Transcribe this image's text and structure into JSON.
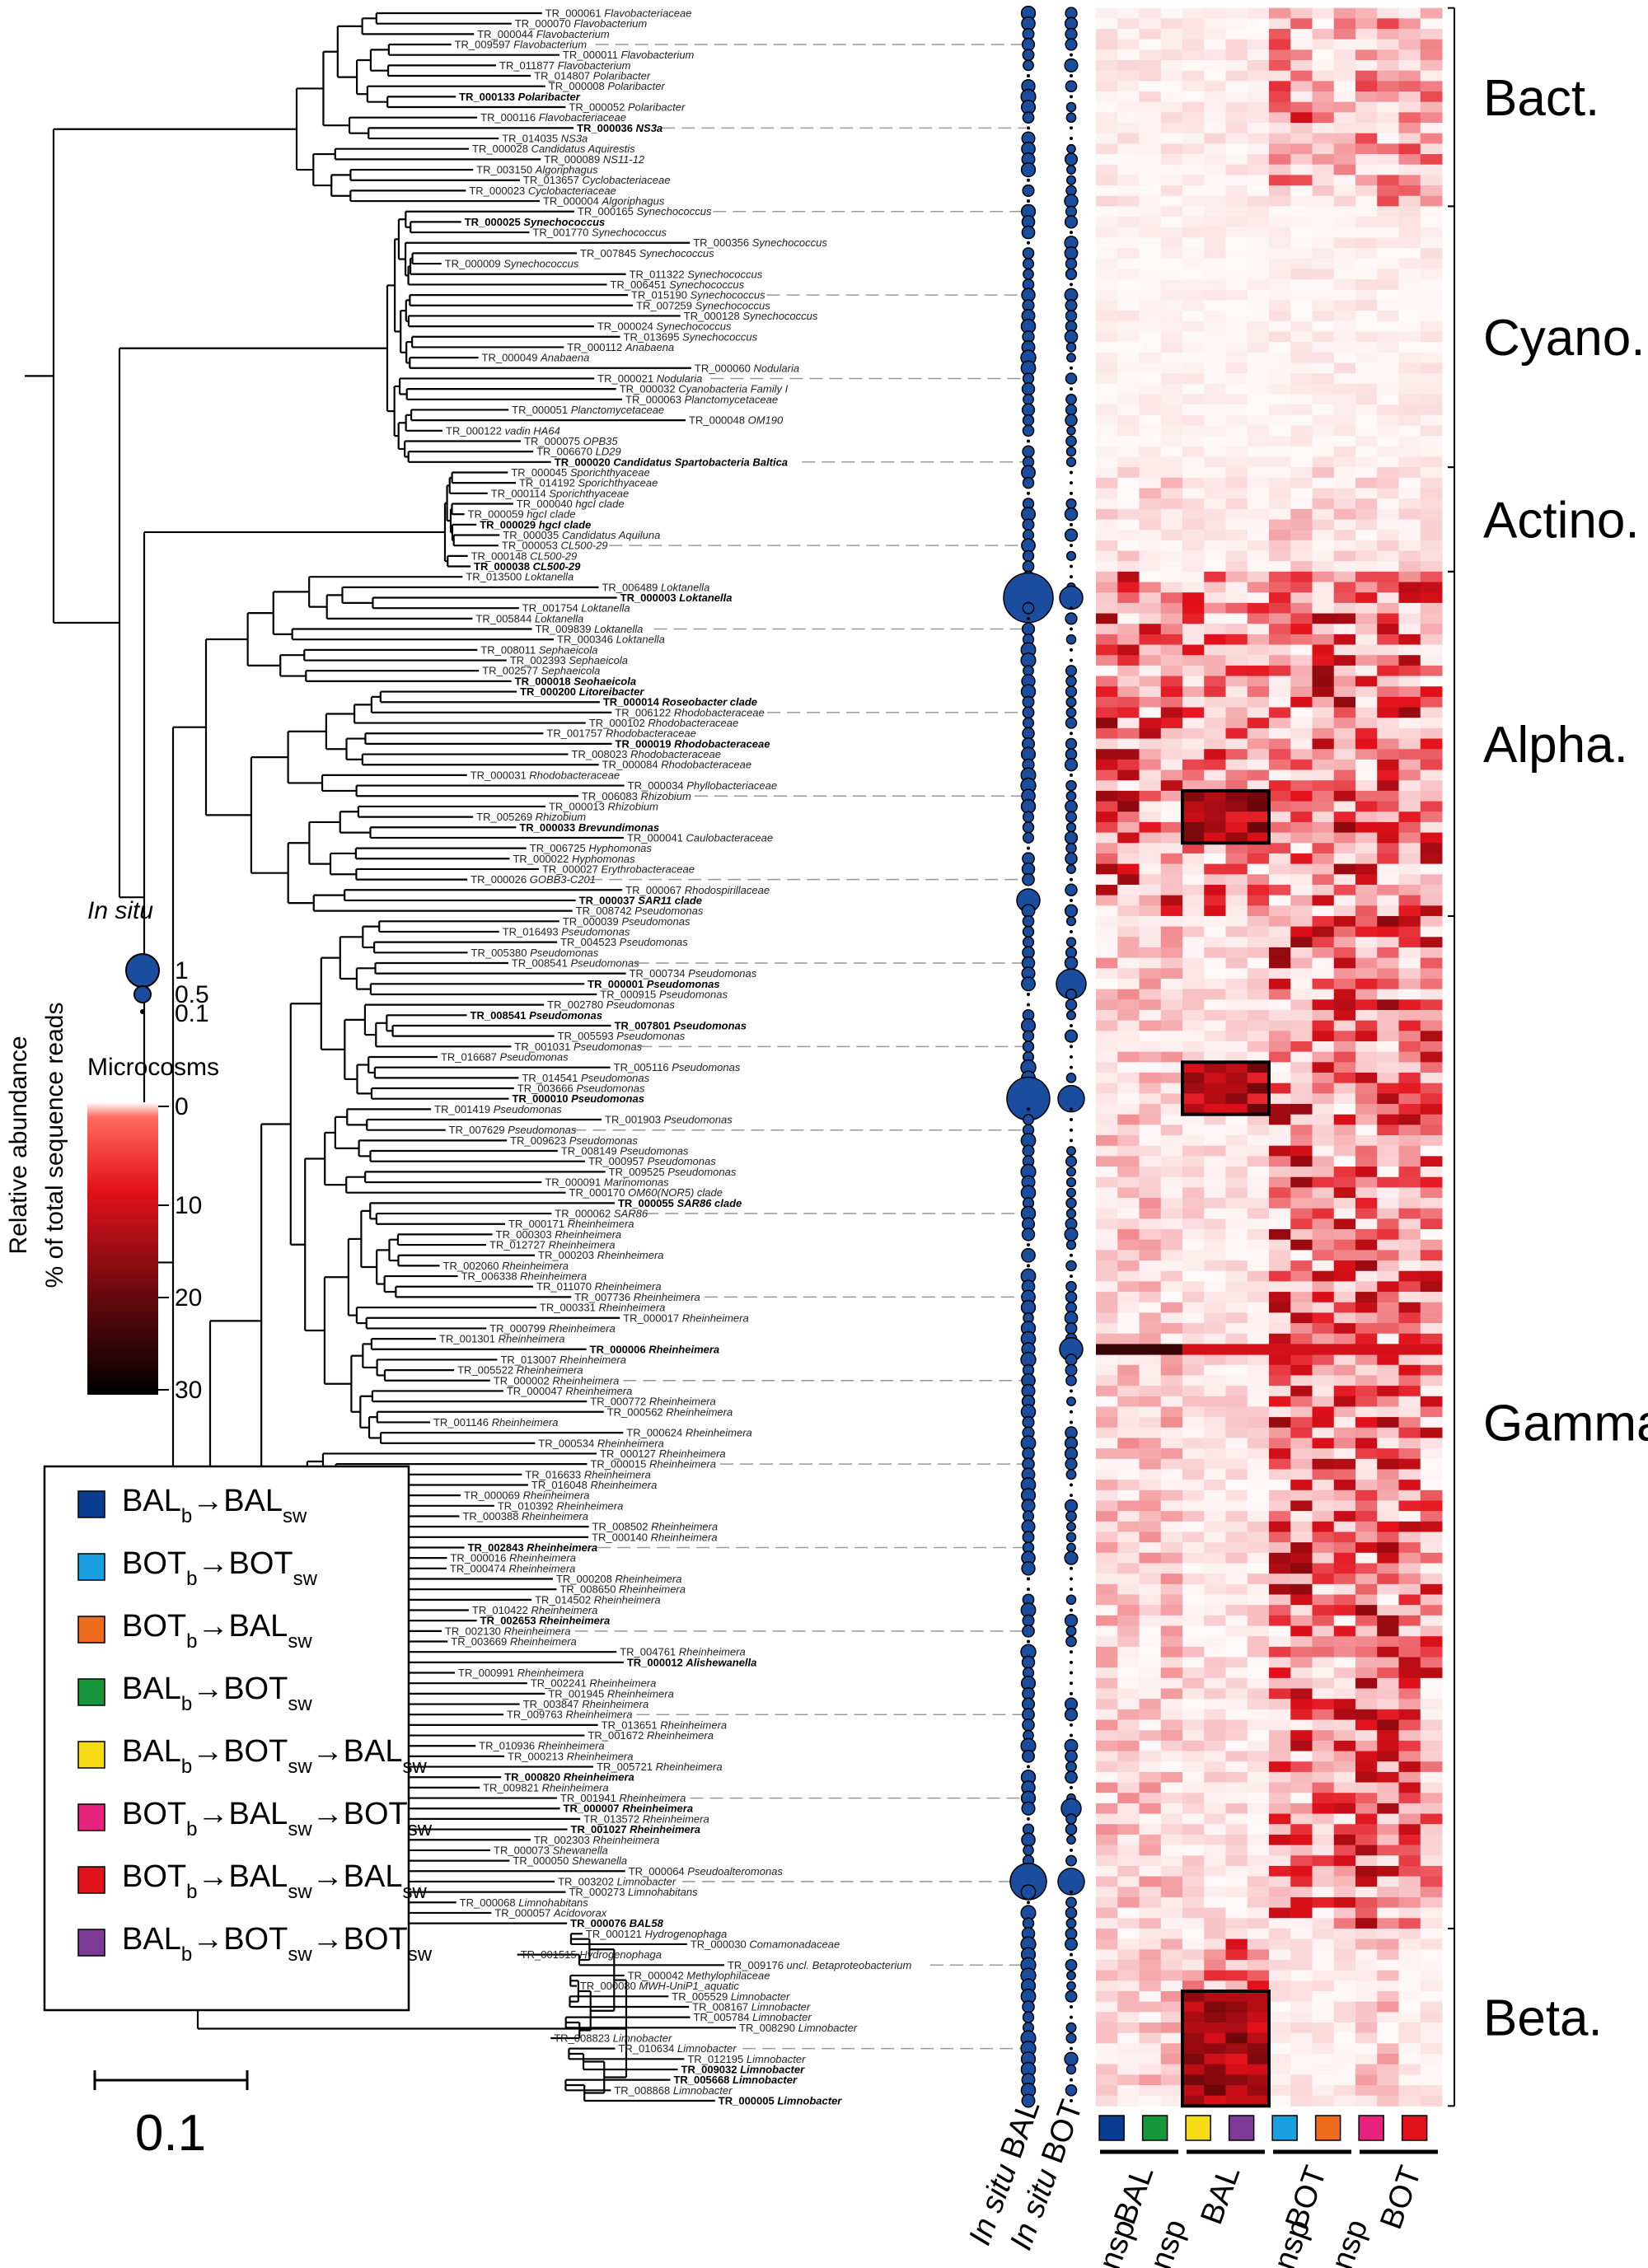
{
  "figure": {
    "groups": [
      {
        "label": "Bact."
      },
      {
        "label": "Cyano."
      },
      {
        "label": "Actino."
      },
      {
        "label": "Alpha."
      },
      {
        "label": "Gamma."
      },
      {
        "label": "Beta."
      }
    ],
    "legend": {
      "insitu_title": "In situ",
      "insitu_ticks": [
        "1",
        "0.5",
        "0.1"
      ],
      "micro_title": "Microcosms",
      "micro_ticks": [
        "0",
        "10",
        "20",
        "30"
      ],
      "axis_line1": "Relative abundance",
      "axis_line2": "% of total sequence reads"
    },
    "treatments": [
      {
        "from": "BAL",
        "mid": "BAL",
        "end": "",
        "color": "#0a3d91"
      },
      {
        "from": "BOT",
        "mid": "BOT",
        "end": "",
        "color": "#1aa0e0"
      },
      {
        "from": "BOT",
        "mid": "BAL",
        "end": "",
        "color": "#ee6a1c"
      },
      {
        "from": "BAL",
        "mid": "BOT",
        "end": "",
        "color": "#17963b"
      },
      {
        "from": "BAL",
        "mid": "BOT",
        "end": "BAL",
        "color": "#f6dc14"
      },
      {
        "from": "BOT",
        "mid": "BAL",
        "end": "BOT",
        "color": "#e8237e"
      },
      {
        "from": "BOT",
        "mid": "BAL",
        "end": "BAL",
        "color": "#e1121b"
      },
      {
        "from": "BAL",
        "mid": "BOT",
        "end": "BOT",
        "color": "#7d3a97"
      }
    ],
    "treatment_sub_b": "b",
    "treatment_sub_sw": "sw",
    "scale_label": "0.1",
    "bottom_labels": {
      "insitu_bal": "In situ BAL",
      "insitu_bot": "In situ BOT",
      "bal": "BAL",
      "bot": "BOT",
      "transp": "transp",
      "retransp": "re-transp"
    },
    "colors": {
      "bubble": "#1a4d9e",
      "heat_low": "#fff8f8",
      "heat_high": "#e3111b"
    }
  },
  "taxa": [
    {
      "id": "TR_000061",
      "name": "Flavobacteriaceae",
      "bold": false
    },
    {
      "id": "TR_000070",
      "name": "Flavobacterium",
      "bold": false
    },
    {
      "id": "TR_000044",
      "name": "Flavobacterium",
      "bold": false
    },
    {
      "id": "TR_009597",
      "name": "Flavobacterium",
      "bold": false
    },
    {
      "id": "TR_000011",
      "name": "Flavobacterium",
      "bold": false
    },
    {
      "id": "TR_011877",
      "name": "Flavobacterium",
      "bold": false
    },
    {
      "id": "TR_014807",
      "name": "Polaribacter",
      "bold": false
    },
    {
      "id": "TR_000008",
      "name": "Polaribacter",
      "bold": false
    },
    {
      "id": "TR_000133",
      "name": "Polaribacter",
      "bold": true
    },
    {
      "id": "TR_000052",
      "name": "Polaribacter",
      "bold": false
    },
    {
      "id": "TR_000116",
      "name": "Flavobacteriaceae",
      "bold": false
    },
    {
      "id": "TR_000036",
      "name": "NS3a",
      "bold": true
    },
    {
      "id": "TR_014035",
      "name": "NS3a",
      "bold": false
    },
    {
      "id": "TR_000028",
      "name": "Candidatus Aquirestis",
      "bold": false
    },
    {
      "id": "TR_000089",
      "name": "NS11-12",
      "bold": false
    },
    {
      "id": "TR_003150",
      "name": "Algoriphagus",
      "bold": false
    },
    {
      "id": "TR_013657",
      "name": "Cyclobacteriaceae",
      "bold": false
    },
    {
      "id": "TR_000023",
      "name": "Cyclobacteriaceae",
      "bold": false
    },
    {
      "id": "TR_000004",
      "name": "Algoriphagus",
      "bold": false
    },
    {
      "id": "TR_000165",
      "name": "Synechococcus",
      "bold": false
    },
    {
      "id": "TR_000025",
      "name": "Synechococcus",
      "bold": true
    },
    {
      "id": "TR_001770",
      "name": "Synechococcus",
      "bold": false
    },
    {
      "id": "TR_000356",
      "name": "Synechococcus",
      "bold": false
    },
    {
      "id": "TR_007845",
      "name": "Synechococcus",
      "bold": false
    },
    {
      "id": "TR_000009",
      "name": "Synechococcus",
      "bold": false
    },
    {
      "id": "TR_011322",
      "name": "Synechococcus",
      "bold": false
    },
    {
      "id": "TR_006451",
      "name": "Synechococcus",
      "bold": false
    },
    {
      "id": "TR_015190",
      "name": "Synechococcus",
      "bold": false
    },
    {
      "id": "TR_007259",
      "name": "Synechococcus",
      "bold": false
    },
    {
      "id": "TR_000128",
      "name": "Synechococcus",
      "bold": false
    },
    {
      "id": "TR_000024",
      "name": "Synechococcus",
      "bold": false
    },
    {
      "id": "TR_013695",
      "name": "Synechococcus",
      "bold": false
    },
    {
      "id": "TR_000112",
      "name": "Anabaena",
      "bold": false
    },
    {
      "id": "TR_000049",
      "name": "Anabaena",
      "bold": false
    },
    {
      "id": "TR_000060",
      "name": "Nodularia",
      "bold": false
    },
    {
      "id": "TR_000021",
      "name": "Nodularia",
      "bold": false
    },
    {
      "id": "TR_000032",
      "name": "Cyanobacteria Family I",
      "bold": false
    },
    {
      "id": "TR_000063",
      "name": "Planctomycetaceae",
      "bold": false
    },
    {
      "id": "TR_000051",
      "name": "Planctomycetaceae",
      "bold": false
    },
    {
      "id": "TR_000048",
      "name": "OM190",
      "bold": false
    },
    {
      "id": "TR_000122",
      "name": "vadin HA64",
      "bold": false
    },
    {
      "id": "TR_000075",
      "name": "OPB35",
      "bold": false
    },
    {
      "id": "TR_006670",
      "name": "LD29",
      "bold": false
    },
    {
      "id": "TR_000020",
      "name": "Candidatus Spartobacteria Baltica",
      "bold": true
    },
    {
      "id": "TR_000045",
      "name": "Sporichthyaceae",
      "bold": false
    },
    {
      "id": "TR_014192",
      "name": "Sporichthyaceae",
      "bold": false
    },
    {
      "id": "TR_000114",
      "name": "Sporichthyaceae",
      "bold": false
    },
    {
      "id": "TR_000040",
      "name": "hgcI clade",
      "bold": false
    },
    {
      "id": "TR_000059",
      "name": "hgcI clade",
      "bold": false
    },
    {
      "id": "TR_000029",
      "name": "hgcI clade",
      "bold": true
    },
    {
      "id": "TR_000035",
      "name": "Candidatus Aquiluna",
      "bold": false
    },
    {
      "id": "TR_000053",
      "name": "CL500-29",
      "bold": false
    },
    {
      "id": "TR_000148",
      "name": "CL500-29",
      "bold": false
    },
    {
      "id": "TR_000038",
      "name": "CL500-29",
      "bold": true
    },
    {
      "id": "TR_013500",
      "name": "Loktanella",
      "bold": false
    },
    {
      "id": "TR_006489",
      "name": "Loktanella",
      "bold": false
    },
    {
      "id": "TR_000003",
      "name": "Loktanella",
      "bold": true
    },
    {
      "id": "TR_001754",
      "name": "Loktanella",
      "bold": false
    },
    {
      "id": "TR_005844",
      "name": "Loktanella",
      "bold": false
    },
    {
      "id": "TR_009839",
      "name": "Loktanella",
      "bold": false
    },
    {
      "id": "TR_000346",
      "name": "Loktanella",
      "bold": false
    },
    {
      "id": "TR_008011",
      "name": "Sephaeicola",
      "bold": false
    },
    {
      "id": "TR_002393",
      "name": "Sephaeicola",
      "bold": false
    },
    {
      "id": "TR_002577",
      "name": "Sephaeicola",
      "bold": false
    },
    {
      "id": "TR_000018",
      "name": "Seohaeicola",
      "bold": true
    },
    {
      "id": "TR_000200",
      "name": "Litoreibacter",
      "bold": true
    },
    {
      "id": "TR_000014",
      "name": "Roseobacter clade",
      "bold": true
    },
    {
      "id": "TR_006122",
      "name": "Rhodobacteraceae",
      "bold": false
    },
    {
      "id": "TR_000102",
      "name": "Rhodobacteraceae",
      "bold": false
    },
    {
      "id": "TR_001757",
      "name": "Rhodobacteraceae",
      "bold": false
    },
    {
      "id": "TR_000019",
      "name": "Rhodobacteraceae",
      "bold": true
    },
    {
      "id": "TR_008023",
      "name": "Rhodobacteraceae",
      "bold": false
    },
    {
      "id": "TR_000084",
      "name": "Rhodobacteraceae",
      "bold": false
    },
    {
      "id": "TR_000031",
      "name": "Rhodobacteraceae",
      "bold": false
    },
    {
      "id": "TR_000034",
      "name": "Phyllobacteriaceae",
      "bold": false
    },
    {
      "id": "TR_006083",
      "name": "Rhizobium",
      "bold": false
    },
    {
      "id": "TR_000013",
      "name": "Rhizobium",
      "bold": false
    },
    {
      "id": "TR_005269",
      "name": "Rhizobium",
      "bold": false
    },
    {
      "id": "TR_000033",
      "name": "Brevundimonas",
      "bold": true
    },
    {
      "id": "TR_000041",
      "name": "Caulobacteraceae",
      "bold": false
    },
    {
      "id": "TR_006725",
      "name": "Hyphomonas",
      "bold": false
    },
    {
      "id": "TR_000022",
      "name": "Hyphomonas",
      "bold": false
    },
    {
      "id": "TR_000027",
      "name": "Erythrobacteraceae",
      "bold": false
    },
    {
      "id": "TR_000026",
      "name": "GOBB3-C201",
      "bold": false
    },
    {
      "id": "TR_000067",
      "name": "Rhodospirillaceae",
      "bold": false
    },
    {
      "id": "TR_000037",
      "name": "SAR11 clade",
      "bold": true
    },
    {
      "id": "TR_008742",
      "name": "Pseudomonas",
      "bold": false
    },
    {
      "id": "TR_000039",
      "name": "Pseudomonas",
      "bold": false
    },
    {
      "id": "TR_016493",
      "name": "Pseudomonas",
      "bold": false
    },
    {
      "id": "TR_004523",
      "name": "Pseudomonas",
      "bold": false
    },
    {
      "id": "TR_005380",
      "name": "Pseudomonas",
      "bold": false
    },
    {
      "id": "TR_008541",
      "name": "Pseudomonas",
      "bold": false
    },
    {
      "id": "TR_000734",
      "name": "Pseudomonas",
      "bold": false
    },
    {
      "id": "TR_000001",
      "name": "Pseudomonas",
      "bold": true
    },
    {
      "id": "TR_000915",
      "name": "Pseudomonas",
      "bold": false
    },
    {
      "id": "TR_002780",
      "name": "Pseudomonas",
      "bold": false
    },
    {
      "id": "TR_008541",
      "name": "Pseudomonas",
      "bold": true
    },
    {
      "id": "TR_007801",
      "name": "Pseudomonas",
      "bold": true
    },
    {
      "id": "TR_005593",
      "name": "Pseudomonas",
      "bold": false
    },
    {
      "id": "TR_001031",
      "name": "Pseudomonas",
      "bold": false
    },
    {
      "id": "TR_016687",
      "name": "Pseudomonas",
      "bold": false
    },
    {
      "id": "TR_005116",
      "name": "Pseudomonas",
      "bold": false
    },
    {
      "id": "TR_014541",
      "name": "Pseudomonas",
      "bold": false
    },
    {
      "id": "TR_003666",
      "name": "Pseudomonas",
      "bold": false
    },
    {
      "id": "TR_000010",
      "name": "Pseudomonas",
      "bold": true
    },
    {
      "id": "TR_001419",
      "name": "Pseudomonas",
      "bold": false
    },
    {
      "id": "TR_001903",
      "name": "Pseudomonas",
      "bold": false
    },
    {
      "id": "TR_007629",
      "name": "Pseudomonas",
      "bold": false
    },
    {
      "id": "TR_009623",
      "name": "Pseudomonas",
      "bold": false
    },
    {
      "id": "TR_008149",
      "name": "Pseudomonas",
      "bold": false
    },
    {
      "id": "TR_000957",
      "name": "Pseudomonas",
      "bold": false
    },
    {
      "id": "TR_009525",
      "name": "Pseudomonas",
      "bold": false
    },
    {
      "id": "TR_000091",
      "name": "Marinomonas",
      "bold": false
    },
    {
      "id": "TR_000170",
      "name": "OM60(NOR5) clade",
      "bold": false
    },
    {
      "id": "TR_000055",
      "name": "SAR86 clade",
      "bold": true
    },
    {
      "id": "TR_000062",
      "name": "SAR86",
      "bold": false
    },
    {
      "id": "TR_000171",
      "name": "Rheinheimera",
      "bold": false
    },
    {
      "id": "TR_000303",
      "name": "Rheinheimera",
      "bold": false
    },
    {
      "id": "TR_012727",
      "name": "Rheinheimera",
      "bold": false
    },
    {
      "id": "TR_000203",
      "name": "Rheinheimera",
      "bold": false
    },
    {
      "id": "TR_002060",
      "name": "Rheinheimera",
      "bold": false
    },
    {
      "id": "TR_006338",
      "name": "Rheinheimera",
      "bold": false
    },
    {
      "id": "TR_011070",
      "name": "Rheinheimera",
      "bold": false
    },
    {
      "id": "TR_007736",
      "name": "Rheinheimera",
      "bold": false
    },
    {
      "id": "TR_000331",
      "name": "Rheinheimera",
      "bold": false
    },
    {
      "id": "TR_000017",
      "name": "Rheinheimera",
      "bold": false
    },
    {
      "id": "TR_000799",
      "name": "Rheinheimera",
      "bold": false
    },
    {
      "id": "TR_001301",
      "name": "Rheinheimera",
      "bold": false
    },
    {
      "id": "TR_000006",
      "name": "Rheinheimera",
      "bold": true
    },
    {
      "id": "TR_013007",
      "name": "Rheinheimera",
      "bold": false
    },
    {
      "id": "TR_005522",
      "name": "Rheinheimera",
      "bold": false
    },
    {
      "id": "TR_000002",
      "name": "Rheinheimera",
      "bold": false
    },
    {
      "id": "TR_000047",
      "name": "Rheinheimera",
      "bold": false
    },
    {
      "id": "TR_000772",
      "name": "Rheinheimera",
      "bold": false
    },
    {
      "id": "TR_000562",
      "name": "Rheinheimera",
      "bold": false
    },
    {
      "id": "TR_001146",
      "name": "Rheinheimera",
      "bold": false
    },
    {
      "id": "TR_000624",
      "name": "Rheinheimera",
      "bold": false
    },
    {
      "id": "TR_000534",
      "name": "Rheinheimera",
      "bold": false
    },
    {
      "id": "TR_000127",
      "name": "Rheinheimera",
      "bold": false
    },
    {
      "id": "TR_000015",
      "name": "Rheinheimera",
      "bold": false
    },
    {
      "id": "TR_016633",
      "name": "Rheinheimera",
      "bold": false
    },
    {
      "id": "TR_016048",
      "name": "Rheinheimera",
      "bold": false
    },
    {
      "id": "TR_000069",
      "name": "Rheinheimera",
      "bold": false
    },
    {
      "id": "TR_010392",
      "name": "Rheinheimera",
      "bold": false
    },
    {
      "id": "TR_000388",
      "name": "Rheinheimera",
      "bold": false
    },
    {
      "id": "TR_008502",
      "name": "Rheinheimera",
      "bold": false
    },
    {
      "id": "TR_000140",
      "name": "Rheinheimera",
      "bold": false
    },
    {
      "id": "TR_002843",
      "name": "Rheinheimera",
      "bold": true
    },
    {
      "id": "TR_000016",
      "name": "Rheinheimera",
      "bold": false
    },
    {
      "id": "TR_000474",
      "name": "Rheinheimera",
      "bold": false
    },
    {
      "id": "TR_000208",
      "name": "Rheinheimera",
      "bold": false
    },
    {
      "id": "TR_008650",
      "name": "Rheinheimera",
      "bold": false
    },
    {
      "id": "TR_014502",
      "name": "Rheinheimera",
      "bold": false
    },
    {
      "id": "TR_010422",
      "name": "Rheinheimera",
      "bold": false
    },
    {
      "id": "TR_002653",
      "name": "Rheinheimera",
      "bold": true
    },
    {
      "id": "TR_002130",
      "name": "Rheinheimera",
      "bold": false
    },
    {
      "id": "TR_003669",
      "name": "Rheinheimera",
      "bold": false
    },
    {
      "id": "TR_004761",
      "name": "Rheinheimera",
      "bold": false
    },
    {
      "id": "TR_000012",
      "name": "Alishewanella",
      "bold": true
    },
    {
      "id": "TR_000991",
      "name": "Rheinheimera",
      "bold": false
    },
    {
      "id": "TR_002241",
      "name": "Rheinheimera",
      "bold": false
    },
    {
      "id": "TR_001945",
      "name": "Rheinheimera",
      "bold": false
    },
    {
      "id": "TR_003847",
      "name": "Rheinheimera",
      "bold": false
    },
    {
      "id": "TR_009763",
      "name": "Rheinheimera",
      "bold": false
    },
    {
      "id": "TR_013651",
      "name": "Rheinheimera",
      "bold": false
    },
    {
      "id": "TR_001672",
      "name": "Rheinheimera",
      "bold": false
    },
    {
      "id": "TR_010936",
      "name": "Rheinheimera",
      "bold": false
    },
    {
      "id": "TR_000213",
      "name": "Rheinheimera",
      "bold": false
    },
    {
      "id": "TR_005721",
      "name": "Rheinheimera",
      "bold": false
    },
    {
      "id": "TR_000820",
      "name": "Rheinheimera",
      "bold": true
    },
    {
      "id": "TR_009821",
      "name": "Rheinheimera",
      "bold": false
    },
    {
      "id": "TR_001941",
      "name": "Rheinheimera",
      "bold": false
    },
    {
      "id": "TR_000007",
      "name": "Rheinheimera",
      "bold": true
    },
    {
      "id": "TR_013572",
      "name": "Rheinheimera",
      "bold": false
    },
    {
      "id": "TR_001027",
      "name": "Rheinheimera",
      "bold": true
    },
    {
      "id": "TR_002303",
      "name": "Rheinheimera",
      "bold": false
    },
    {
      "id": "TR_000073",
      "name": "Shewanella",
      "bold": false
    },
    {
      "id": "TR_000050",
      "name": "Shewanella",
      "bold": false
    },
    {
      "id": "TR_000064",
      "name": "Pseudoalteromonas",
      "bold": false
    },
    {
      "id": "TR_003202",
      "name": "Limnobacter",
      "bold": false
    },
    {
      "id": "TR_000273",
      "name": "Limnohabitans",
      "bold": false
    },
    {
      "id": "TR_000068",
      "name": "Limnohabitans",
      "bold": false
    },
    {
      "id": "TR_000057",
      "name": "Acidovorax",
      "bold": false
    },
    {
      "id": "TR_000076",
      "name": "BAL58",
      "bold": true
    },
    {
      "id": "TR_000121",
      "name": "Hydrogenophaga",
      "bold": false
    },
    {
      "id": "TR_000030",
      "name": "Comamonadaceae",
      "bold": false
    },
    {
      "id": "TR_001515",
      "name": "Hydrogenophaga",
      "bold": false
    },
    {
      "id": "TR_009176",
      "name": "uncl. Betaproteobacterium",
      "bold": false
    },
    {
      "id": "TR_000042",
      "name": "Methylophilaceae",
      "bold": false
    },
    {
      "id": "TR_000080",
      "name": "MWH-UniP1_aquatic",
      "bold": false
    },
    {
      "id": "TR_005529",
      "name": "Limnobacter",
      "bold": false
    },
    {
      "id": "TR_008167",
      "name": "Limnobacter",
      "bold": false
    },
    {
      "id": "TR_005784",
      "name": "Limnobacter",
      "bold": false
    },
    {
      "id": "TR_008290",
      "name": "Limnobacter",
      "bold": false
    },
    {
      "id": "TR_008823",
      "name": "Limnobacter",
      "bold": false
    },
    {
      "id": "TR_010634",
      "name": "Limnobacter",
      "bold": false
    },
    {
      "id": "TR_012195",
      "name": "Limnobacter",
      "bold": false
    },
    {
      "id": "TR_009032",
      "name": "Limnobacter",
      "bold": true
    },
    {
      "id": "TR_005668",
      "name": "Limnobacter",
      "bold": true
    },
    {
      "id": "TR_008868",
      "name": "Limnobacter",
      "bold": false
    },
    {
      "id": "TR_000005",
      "name": "Limnobacter",
      "bold": true
    }
  ]
}
